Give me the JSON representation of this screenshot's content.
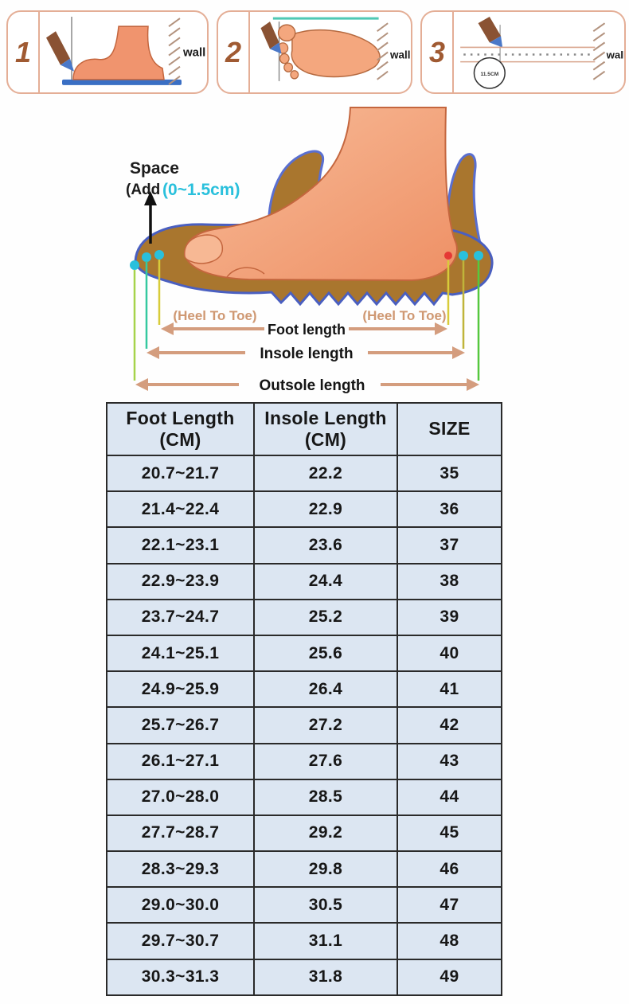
{
  "colors": {
    "accent_cyan": "#29c0dc",
    "panel_border": "#e4ae96",
    "step_number_brown": "#a05a32",
    "table_background": "#dce6f2",
    "table_border": "#2a2a2a",
    "arrow_tan": "#d49d7e",
    "heel_to_toe_text": "#cf9872",
    "foot_salmon": "#f3a47c",
    "shoe_brown": "#a9762e",
    "sole_outline_blue": "#4a5fc0"
  },
  "steps": {
    "panel1": {
      "number": "1",
      "wall_label": "wall"
    },
    "panel2": {
      "number": "2",
      "wall_label": "wall"
    },
    "panel3": {
      "number": "3",
      "wall_label": "wall",
      "ruler_circle_label": "11.5CM"
    }
  },
  "diagram": {
    "space_label": "Space",
    "space_add_label": "(Add",
    "space_add_value": "(0~1.5cm)",
    "heel_to_toe_left": "(Heel To Toe)",
    "heel_to_toe_right": "(Heel To Toe)",
    "foot_length_label": "Foot length",
    "insole_length_label": "Insole length",
    "outsole_length_label": "Outsole length"
  },
  "size_table": {
    "headers": [
      "Foot Length\n(CM)",
      "Insole Length\n(CM)",
      "SIZE"
    ],
    "rows": [
      [
        "20.7~21.7",
        "22.2",
        "35"
      ],
      [
        "21.4~22.4",
        "22.9",
        "36"
      ],
      [
        "22.1~23.1",
        "23.6",
        "37"
      ],
      [
        "22.9~23.9",
        "24.4",
        "38"
      ],
      [
        "23.7~24.7",
        "25.2",
        "39"
      ],
      [
        "24.1~25.1",
        "25.6",
        "40"
      ],
      [
        "24.9~25.9",
        "26.4",
        "41"
      ],
      [
        "25.7~26.7",
        "27.2",
        "42"
      ],
      [
        "26.1~27.1",
        "27.6",
        "43"
      ],
      [
        "27.0~28.0",
        "28.5",
        "44"
      ],
      [
        "27.7~28.7",
        "29.2",
        "45"
      ],
      [
        "28.3~29.3",
        "29.8",
        "46"
      ],
      [
        "29.0~30.0",
        "30.5",
        "47"
      ],
      [
        "29.7~30.7",
        "31.1",
        "48"
      ],
      [
        "30.3~31.3",
        "31.8",
        "49"
      ]
    ]
  }
}
